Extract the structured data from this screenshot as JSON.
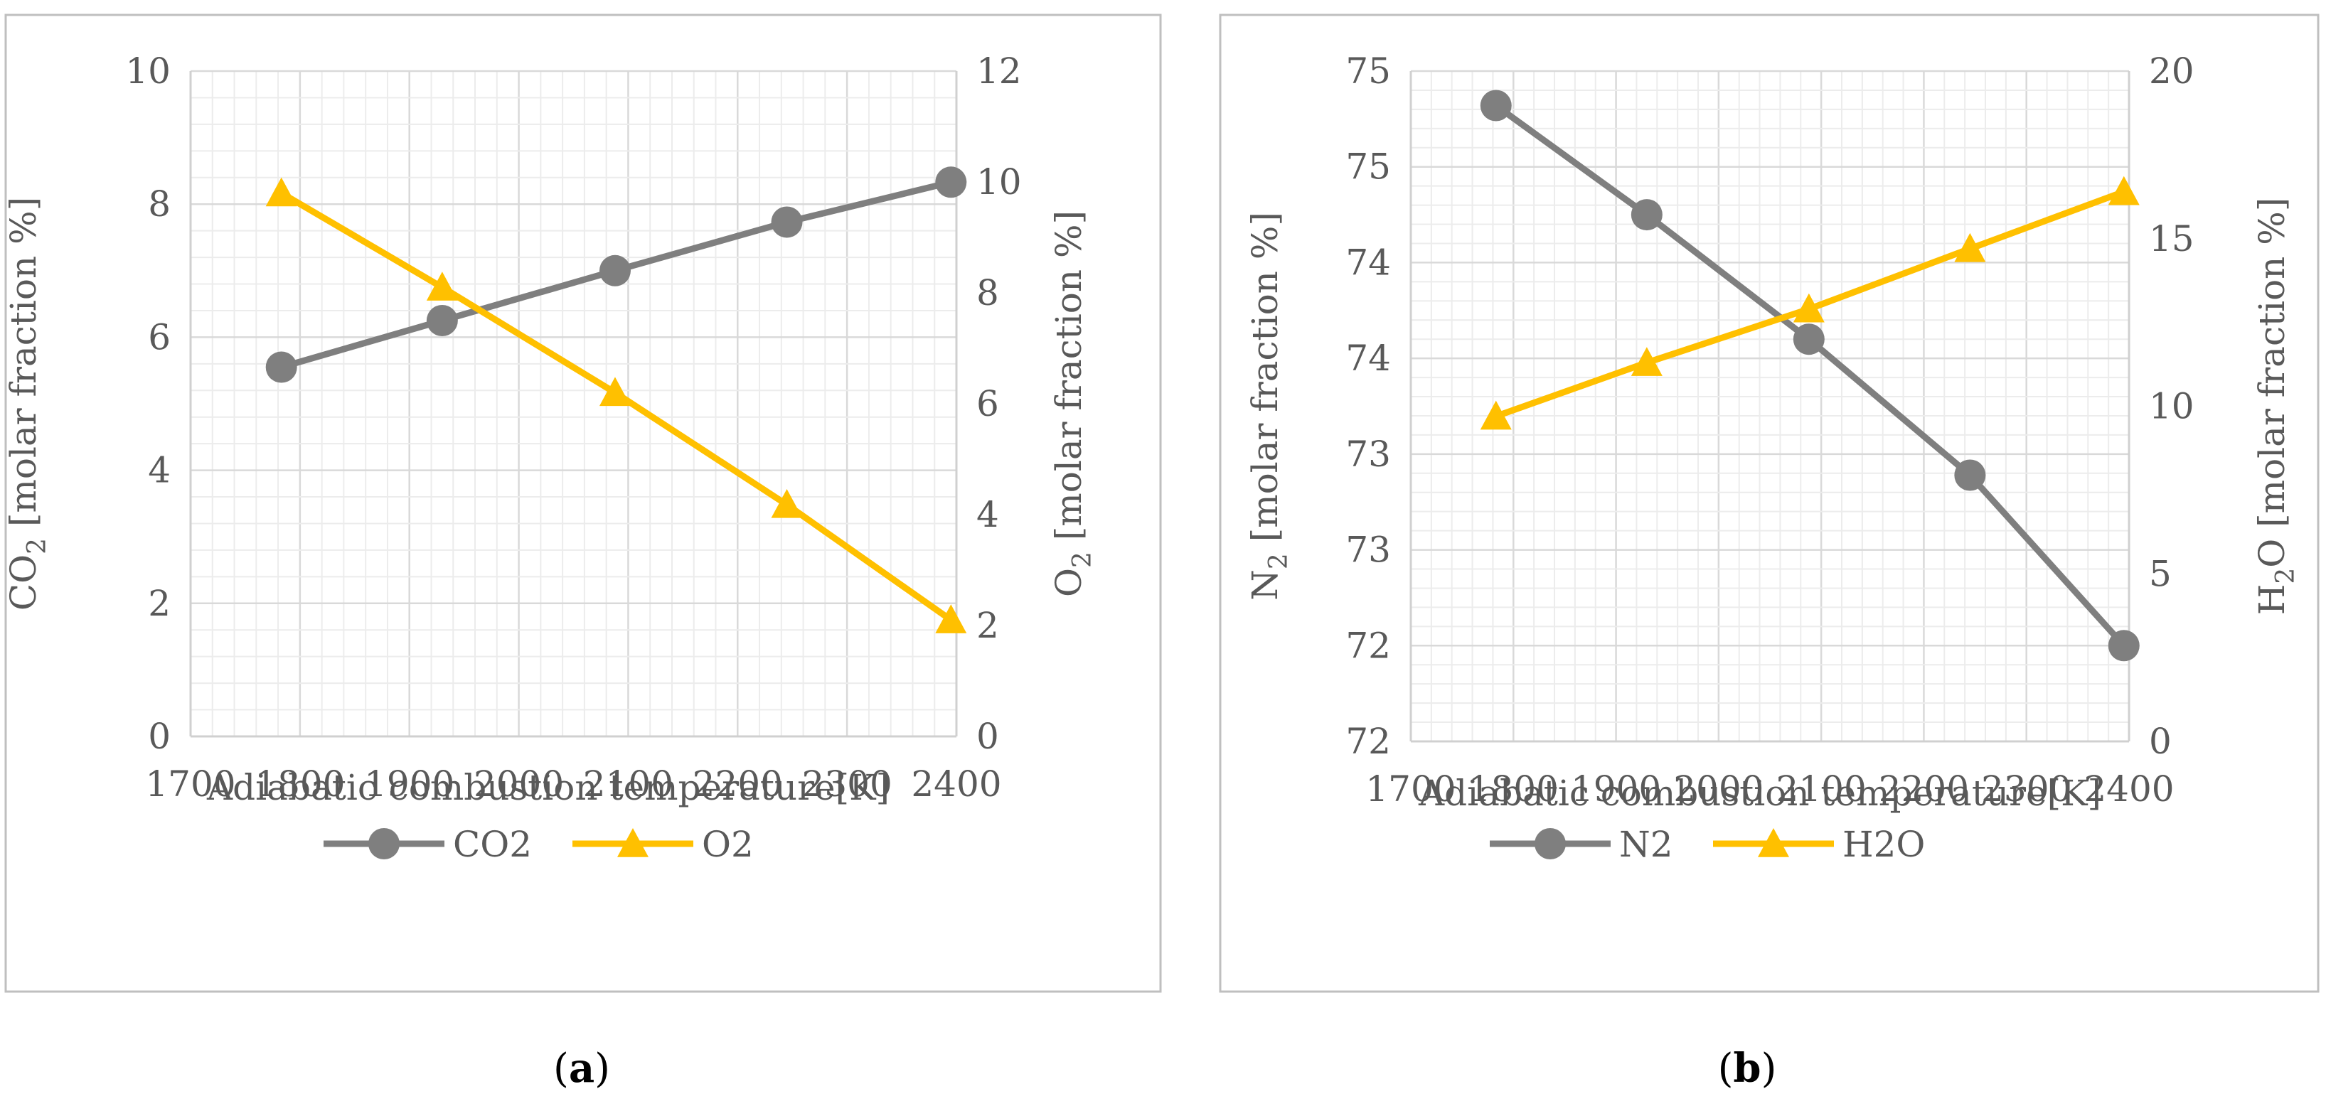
{
  "chart_data": [
    {
      "type": "line",
      "panel_label": "a",
      "title": "",
      "xlabel": "Adiabatic combustion temperature[K]",
      "ylabel": {
        "base": "CO",
        "sub": "2",
        "rest": " [molar fraction %]"
      },
      "y2label": {
        "base": "O",
        "sub": "2",
        "rest": " [molar fraction %]"
      },
      "xlim": [
        1700,
        2400
      ],
      "xticks": [
        1700,
        1800,
        1900,
        2000,
        2100,
        2200,
        2300,
        2400
      ],
      "ylim": [
        0,
        10
      ],
      "yticks": [
        "0",
        "2",
        "4",
        "6",
        "8",
        "10"
      ],
      "ytick_values": [
        0,
        2,
        4,
        6,
        8,
        10
      ],
      "y2lim": [
        0,
        12
      ],
      "y2ticks": [
        "0",
        "2",
        "4",
        "6",
        "8",
        "10",
        "12"
      ],
      "y2tick_values": [
        0,
        2,
        4,
        6,
        8,
        10,
        12
      ],
      "grid": true,
      "legend_position": "bottom",
      "series": [
        {
          "name": "CO2",
          "axis": "left",
          "marker": "circle",
          "color": "#7f7f7f",
          "x": [
            1783,
            1930,
            2088,
            2245,
            2395
          ],
          "values": [
            5.55,
            6.25,
            7.0,
            7.73,
            8.33
          ]
        },
        {
          "name": "O2",
          "axis": "right",
          "marker": "triangle",
          "color": "#ffc000",
          "x": [
            1783,
            1930,
            2088,
            2245,
            2395
          ],
          "values": [
            9.8,
            8.1,
            6.2,
            4.18,
            2.1
          ]
        }
      ]
    },
    {
      "type": "line",
      "panel_label": "b",
      "title": "",
      "xlabel": "Adiabatic combustion temperature[K]",
      "ylabel": {
        "base": "N",
        "sub": "2",
        "rest": " [molar fraction %]"
      },
      "y2label": {
        "base": "H",
        "sub": "2",
        "rest": "O [molar fraction %]"
      },
      "xlim": [
        1700,
        2400
      ],
      "xticks": [
        1700,
        1800,
        1900,
        2000,
        2100,
        2200,
        2300,
        2400
      ],
      "ylim": [
        71.5,
        75.0
      ],
      "yticks": [
        "72",
        "72",
        "73",
        "73",
        "74",
        "74",
        "75",
        "75"
      ],
      "ytick_values": [
        71.5,
        72.0,
        72.5,
        73.0,
        73.5,
        74.0,
        74.5,
        75.0
      ],
      "y2lim": [
        0,
        20
      ],
      "y2ticks": [
        "0",
        "5",
        "10",
        "15",
        "20"
      ],
      "y2tick_values": [
        0,
        5,
        10,
        15,
        20
      ],
      "grid": true,
      "legend_position": "bottom",
      "series": [
        {
          "name": "N2",
          "axis": "left",
          "marker": "circle",
          "color": "#7f7f7f",
          "x": [
            1783,
            1930,
            2088,
            2245,
            2395
          ],
          "values": [
            74.82,
            74.25,
            73.6,
            72.89,
            72.0
          ]
        },
        {
          "name": "H2O",
          "axis": "right",
          "marker": "triangle",
          "color": "#ffc000",
          "x": [
            1783,
            1930,
            2088,
            2245,
            2395
          ],
          "values": [
            9.7,
            11.3,
            12.9,
            14.7,
            16.4
          ]
        }
      ]
    }
  ],
  "captions": {
    "left": "a",
    "right": "b"
  }
}
